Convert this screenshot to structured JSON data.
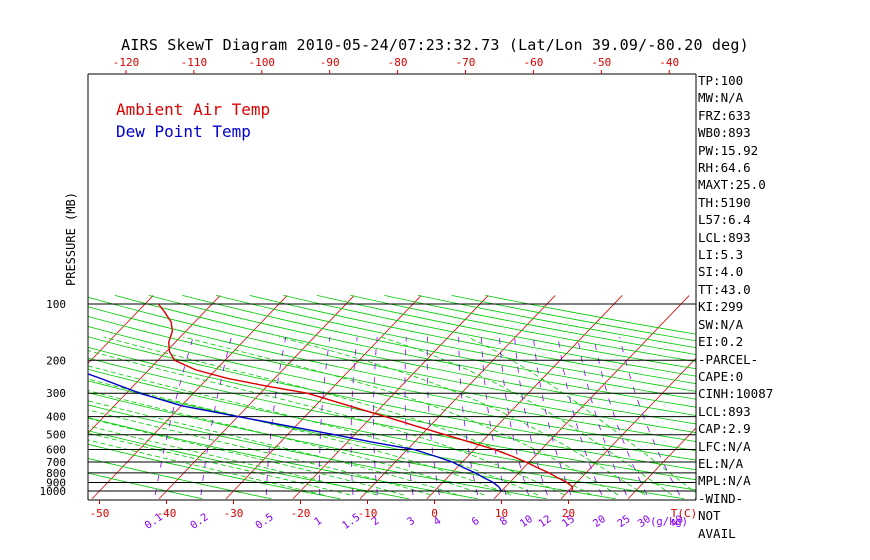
{
  "chart_data": {
    "type": "skewt",
    "title": "AIRS SkewT Diagram 2010-05-24/07:23:32.73 (Lat/Lon 39.09/-80.20 deg)",
    "ylabel": "PRESSURE (MB)",
    "y_scale": "log",
    "ylim": [
      1000,
      100
    ],
    "pressure_ticks": [
      100,
      200,
      300,
      400,
      500,
      600,
      700,
      800,
      900,
      1000
    ],
    "bottom_temp_ticks": [
      -50,
      -40,
      -30,
      -20,
      -10,
      0,
      10,
      20
    ],
    "bottom_temp_unit": "T(C)",
    "top_temp_ticks": [
      -120,
      -110,
      -100,
      -90,
      -80,
      -70,
      -60,
      -50,
      -40
    ],
    "mixing_ratio_labels": [
      "0.1",
      "0.2",
      "0.5",
      "1",
      "1.5",
      "2",
      "3",
      "4",
      "6",
      "8",
      "10",
      "12",
      "15",
      "20",
      "25",
      "30",
      "40"
    ],
    "mixing_ratio_unit": "(g/kg)",
    "series": [
      {
        "name": "Ambient Air Temp",
        "color": "#dd0000",
        "points": [
          [
            1000,
            20.5
          ],
          [
            950,
            20.0
          ],
          [
            900,
            18.5
          ],
          [
            850,
            16.5
          ],
          [
            800,
            14.5
          ],
          [
            750,
            12.0
          ],
          [
            700,
            9.5
          ],
          [
            650,
            6.5
          ],
          [
            600,
            3.0
          ],
          [
            550,
            -1.5
          ],
          [
            500,
            -6.5
          ],
          [
            450,
            -12.0
          ],
          [
            400,
            -18.0
          ],
          [
            350,
            -25.0
          ],
          [
            300,
            -33.0
          ],
          [
            275,
            -40.0
          ],
          [
            250,
            -47.0
          ],
          [
            225,
            -53.0
          ],
          [
            200,
            -57.5
          ],
          [
            180,
            -59.5
          ],
          [
            160,
            -61.0
          ],
          [
            140,
            -62.0
          ],
          [
            125,
            -63.5
          ],
          [
            110,
            -66.0
          ],
          [
            100,
            -68.0
          ]
        ]
      },
      {
        "name": "Dew Point Temp",
        "color": "#0000cc",
        "points": [
          [
            1000,
            10.0
          ],
          [
            950,
            9.0
          ],
          [
            900,
            7.5
          ],
          [
            850,
            5.5
          ],
          [
            800,
            3.5
          ],
          [
            750,
            1.0
          ],
          [
            700,
            -1.5
          ],
          [
            650,
            -5.0
          ],
          [
            600,
            -9.0
          ],
          [
            550,
            -16.0
          ],
          [
            500,
            -23.0
          ],
          [
            450,
            -31.0
          ],
          [
            400,
            -40.0
          ],
          [
            350,
            -50.0
          ],
          [
            300,
            -58.0
          ],
          [
            250,
            -66.0
          ],
          [
            200,
            -76.0
          ],
          [
            160,
            -82.0
          ],
          [
            140,
            -84.0
          ],
          [
            120,
            -85.0
          ],
          [
            100,
            -90.0
          ]
        ]
      }
    ],
    "line_colors": {
      "isotherm": "#dd0000",
      "dry_adiabat": "#00cc00",
      "moist_adiabat": "#00cc00",
      "mixing_ratio": "#8800ff",
      "isobar": "#000000"
    }
  },
  "indices": [
    "TP:100",
    "MW:N/A",
    "FRZ:633",
    "WB0:893",
    "PW:15.92",
    "RH:64.6",
    "MAXT:25.0",
    "TH:5190",
    "L57:6.4",
    "LCL:893",
    "LI:5.3",
    "SI:4.0",
    "TT:43.0",
    "KI:299",
    "SW:N/A",
    "EI:0.2",
    "-PARCEL-",
    "CAPE:0",
    "CINH:10087",
    "LCL:893",
    "CAP:2.9",
    "LFC:N/A",
    "EL:N/A",
    "MPL:N/A",
    "-WIND-",
    " NOT",
    " AVAIL"
  ]
}
